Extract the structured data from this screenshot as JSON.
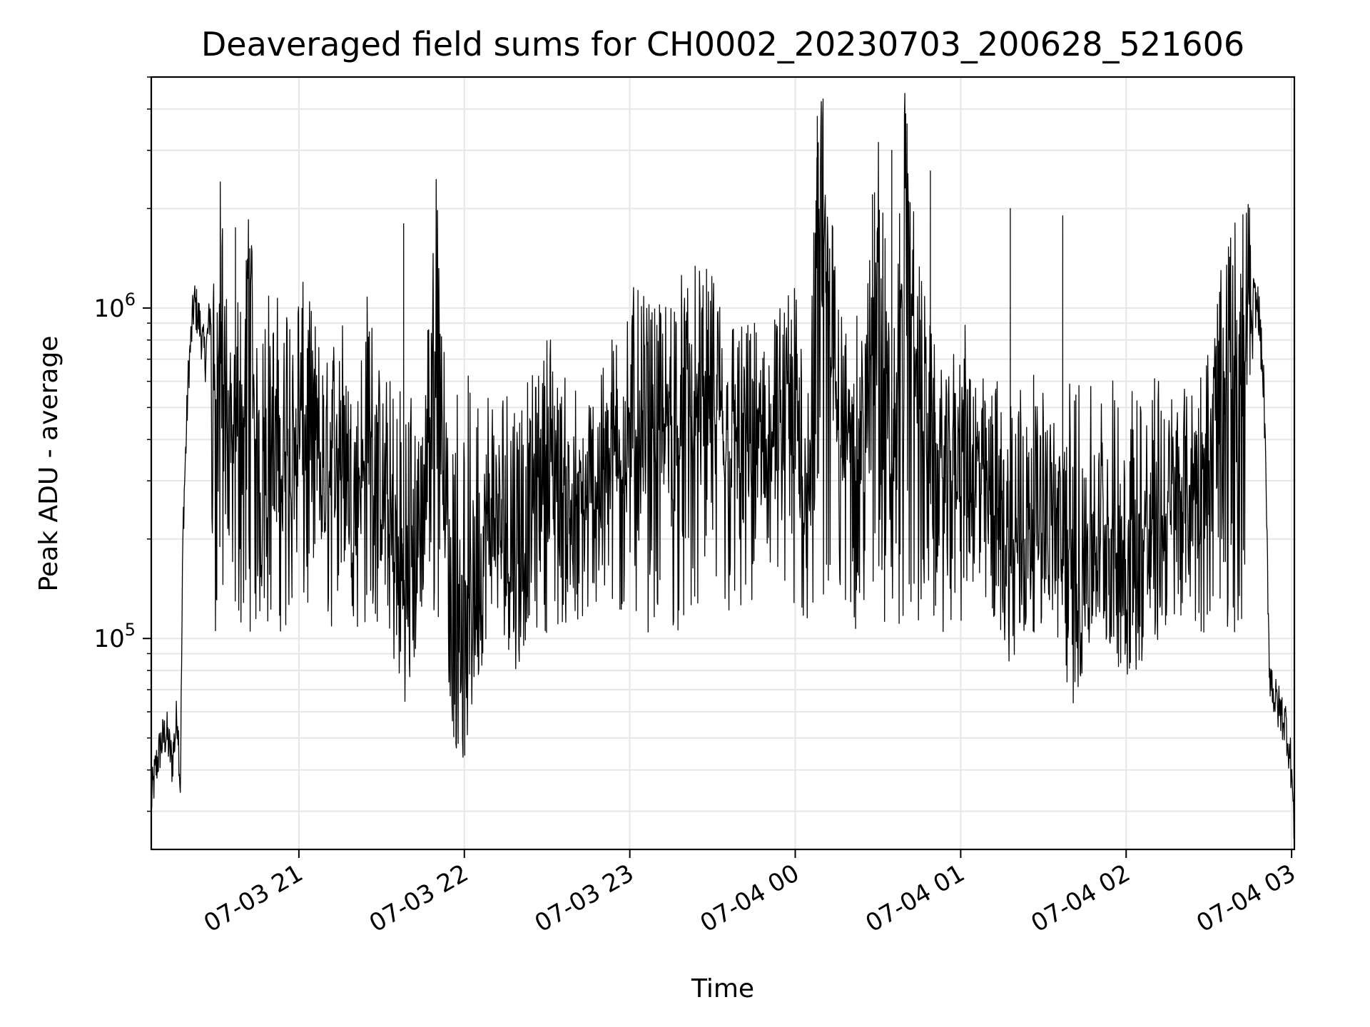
{
  "chart_data": {
    "type": "line",
    "title": "Deaveraged field sums for CH0002_20230703_200628_521606",
    "xlabel": "Time",
    "ylabel": "Peak ADU - average",
    "yscale": "log",
    "grid": true,
    "line_color": "#000000",
    "grid_color": "#e6e6e6",
    "xlim": [
      "2023-07-03 20:06:28",
      "2023-07-04 03:01:00"
    ],
    "ylim": [
      23000,
      5000000
    ],
    "x_ticks": [
      {
        "value": "2023-07-03 21:00",
        "label": "07-03 21"
      },
      {
        "value": "2023-07-03 22:00",
        "label": "07-03 22"
      },
      {
        "value": "2023-07-03 23:00",
        "label": "07-03 23"
      },
      {
        "value": "2023-07-04 00:00",
        "label": "07-04 00"
      },
      {
        "value": "2023-07-04 01:00",
        "label": "07-04 01"
      },
      {
        "value": "2023-07-04 02:00",
        "label": "07-04 02"
      },
      {
        "value": "2023-07-04 03:00",
        "label": "07-04 03"
      }
    ],
    "y_major_ticks": [
      {
        "value": 100000,
        "base": "10",
        "exp": "5"
      },
      {
        "value": 1000000,
        "base": "10",
        "exp": "6"
      }
    ],
    "series": [
      {
        "values_note_omitted": false,
        "x": [
          "2023-07-03 20:06",
          "2023-07-03 20:08",
          "2023-07-03 20:10",
          "2023-07-03 20:12",
          "2023-07-03 20:14",
          "2023-07-03 20:16",
          "2023-07-03 20:17",
          "2023-07-03 20:18",
          "2023-07-03 20:20",
          "2023-07-03 20:22",
          "2023-07-03 20:24",
          "2023-07-03 20:26",
          "2023-07-03 20:28",
          "2023-07-03 20:30",
          "2023-07-03 20:32",
          "2023-07-03 20:34",
          "2023-07-03 20:36",
          "2023-07-03 20:38",
          "2023-07-03 20:40",
          "2023-07-03 20:42",
          "2023-07-03 20:44",
          "2023-07-03 20:46",
          "2023-07-03 20:48",
          "2023-07-03 20:50",
          "2023-07-03 20:52",
          "2023-07-03 20:54",
          "2023-07-03 20:56",
          "2023-07-03 20:58",
          "2023-07-03 21:00",
          "2023-07-03 21:05",
          "2023-07-03 21:10",
          "2023-07-03 21:15",
          "2023-07-03 21:20",
          "2023-07-03 21:25",
          "2023-07-03 21:30",
          "2023-07-03 21:35",
          "2023-07-03 21:40",
          "2023-07-03 21:45",
          "2023-07-03 21:50",
          "2023-07-03 21:55",
          "2023-07-03 22:00",
          "2023-07-03 22:10",
          "2023-07-03 22:20",
          "2023-07-03 22:30",
          "2023-07-03 22:40",
          "2023-07-03 22:50",
          "2023-07-03 23:00",
          "2023-07-03 23:10",
          "2023-07-03 23:20",
          "2023-07-03 23:30",
          "2023-07-03 23:40",
          "2023-07-03 23:50",
          "2023-07-04 00:00",
          "2023-07-04 00:05",
          "2023-07-04 00:10",
          "2023-07-04 00:15",
          "2023-07-04 00:20",
          "2023-07-04 00:25",
          "2023-07-04 00:30",
          "2023-07-04 00:35",
          "2023-07-04 00:40",
          "2023-07-04 00:45",
          "2023-07-04 00:50",
          "2023-07-04 00:55",
          "2023-07-04 01:00",
          "2023-07-04 01:10",
          "2023-07-04 01:20",
          "2023-07-04 01:30",
          "2023-07-04 01:40",
          "2023-07-04 01:50",
          "2023-07-04 02:00",
          "2023-07-04 02:10",
          "2023-07-04 02:20",
          "2023-07-04 02:30",
          "2023-07-04 02:35",
          "2023-07-04 02:40",
          "2023-07-04 02:45",
          "2023-07-04 02:48",
          "2023-07-04 02:50",
          "2023-07-04 02:52",
          "2023-07-04 02:54",
          "2023-07-04 02:56",
          "2023-07-04 02:58",
          "2023-07-04 03:00",
          "2023-07-04 03:01"
        ],
        "values": [
          30000,
          40000,
          48000,
          52000,
          42000,
          60000,
          35000,
          220000,
          650000,
          1050000,
          900000,
          700000,
          1000000,
          600000,
          1600000,
          500000,
          300000,
          700000,
          400000,
          1700000,
          500000,
          250000,
          800000,
          450000,
          600000,
          350000,
          700000,
          400000,
          650000,
          500000,
          350000,
          550000,
          250000,
          600000,
          300000,
          150000,
          120000,
          250000,
          1750000,
          100000,
          80000,
          250000,
          150000,
          500000,
          180000,
          350000,
          600000,
          500000,
          700000,
          650000,
          450000,
          500000,
          600000,
          400000,
          3800000,
          550000,
          500000,
          450000,
          2200000,
          350000,
          2500000,
          700000,
          400000,
          300000,
          500000,
          250000,
          150000,
          300000,
          120000,
          200000,
          150000,
          180000,
          250000,
          400000,
          700000,
          1000000,
          1100000,
          1000000,
          550000,
          80000,
          65000,
          60000,
          55000,
          40000,
          25000
        ]
      }
    ],
    "envelope": {
      "typical_upper": 900000,
      "typical_lower": 80000,
      "spikes": [
        {
          "x": "2023-07-04 00:08",
          "y": 3800000
        },
        {
          "x": "2023-07-04 00:35",
          "y": 3000000
        },
        {
          "x": "2023-07-04 00:49",
          "y": 2600000
        },
        {
          "x": "2023-07-04 00:28",
          "y": 2200000
        },
        {
          "x": "2023-07-04 01:18",
          "y": 2000000
        },
        {
          "x": "2023-07-04 01:37",
          "y": 1900000
        },
        {
          "x": "2023-07-04 00:14",
          "y": 1300000
        },
        {
          "x": "2023-07-03 21:38",
          "y": 1800000
        },
        {
          "x": "2023-07-03 20:37",
          "y": 1750000
        }
      ]
    }
  }
}
